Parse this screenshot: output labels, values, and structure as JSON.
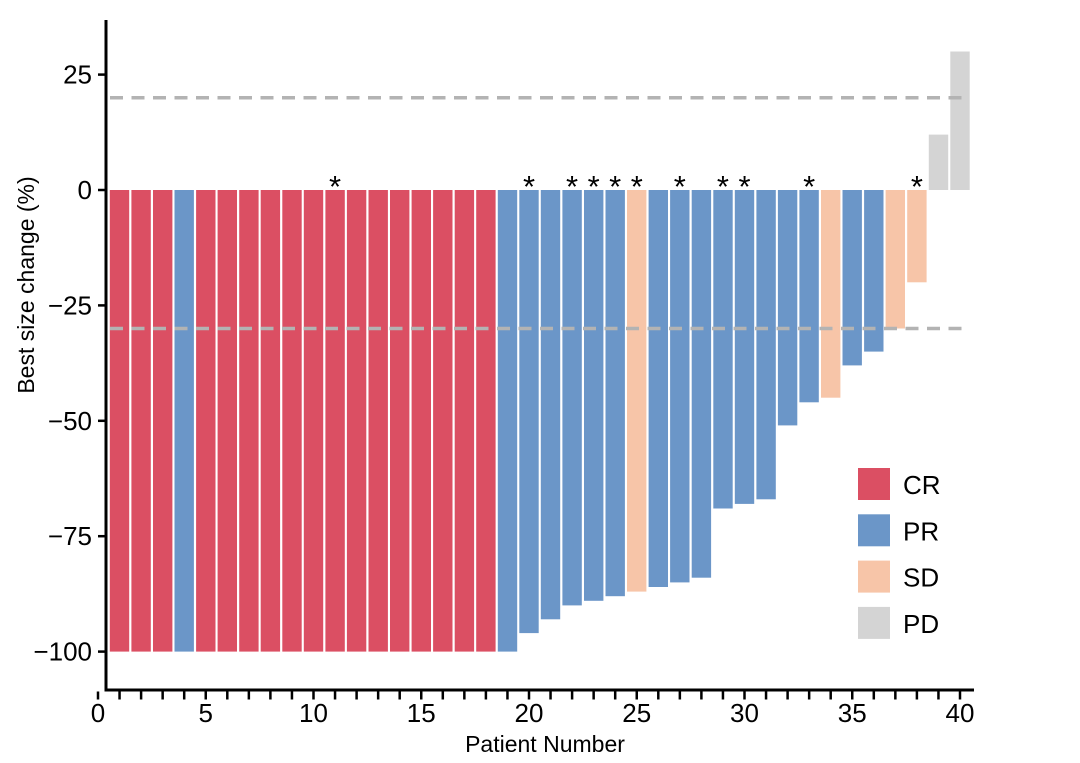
{
  "chart_data": {
    "type": "bar",
    "title": "",
    "xlabel": "Patient Number",
    "ylabel": "Best size change (%)",
    "x_range": [
      0,
      40
    ],
    "ylim": [
      -108,
      38
    ],
    "x_major_ticks": [
      {
        "v": 0,
        "label": "0"
      },
      {
        "v": 5,
        "label": "5"
      },
      {
        "v": 10,
        "label": "10"
      },
      {
        "v": 15,
        "label": "15"
      },
      {
        "v": 20,
        "label": "20"
      },
      {
        "v": 25,
        "label": "25"
      },
      {
        "v": 30,
        "label": "30"
      },
      {
        "v": 35,
        "label": "35"
      },
      {
        "v": 40,
        "label": "40"
      }
    ],
    "x_minor_tick_every": 1,
    "y_ticks": [
      {
        "v": 25,
        "label": "25"
      },
      {
        "v": 0,
        "label": "0"
      },
      {
        "v": -25,
        "label": "−25"
      },
      {
        "v": -50,
        "label": "−50"
      },
      {
        "v": -75,
        "label": "−75"
      },
      {
        "v": -100,
        "label": "−100"
      }
    ],
    "grid": false,
    "reference_lines": [
      {
        "value": 20,
        "style": "dashed"
      },
      {
        "value": -30,
        "style": "dashed"
      }
    ],
    "annotation_symbol": "*",
    "legend_position": "right-inside",
    "legend": [
      {
        "label": "CR",
        "color": "#DB4F63"
      },
      {
        "label": "PR",
        "color": "#6B96C8"
      },
      {
        "label": "SD",
        "color": "#F7C5A8"
      },
      {
        "label": "PD",
        "color": "#D4D4D4"
      }
    ],
    "bars": [
      {
        "patient": 1,
        "response": "CR",
        "value": -100,
        "asterisk": false
      },
      {
        "patient": 2,
        "response": "CR",
        "value": -100,
        "asterisk": false
      },
      {
        "patient": 3,
        "response": "CR",
        "value": -100,
        "asterisk": false
      },
      {
        "patient": 4,
        "response": "PR",
        "value": -100,
        "asterisk": false
      },
      {
        "patient": 5,
        "response": "CR",
        "value": -100,
        "asterisk": false
      },
      {
        "patient": 6,
        "response": "CR",
        "value": -100,
        "asterisk": false
      },
      {
        "patient": 7,
        "response": "CR",
        "value": -100,
        "asterisk": false
      },
      {
        "patient": 8,
        "response": "CR",
        "value": -100,
        "asterisk": false
      },
      {
        "patient": 9,
        "response": "CR",
        "value": -100,
        "asterisk": false
      },
      {
        "patient": 10,
        "response": "CR",
        "value": -100,
        "asterisk": false
      },
      {
        "patient": 11,
        "response": "CR",
        "value": -100,
        "asterisk": true
      },
      {
        "patient": 12,
        "response": "CR",
        "value": -100,
        "asterisk": false
      },
      {
        "patient": 13,
        "response": "CR",
        "value": -100,
        "asterisk": false
      },
      {
        "patient": 14,
        "response": "CR",
        "value": -100,
        "asterisk": false
      },
      {
        "patient": 15,
        "response": "CR",
        "value": -100,
        "asterisk": false
      },
      {
        "patient": 16,
        "response": "CR",
        "value": -100,
        "asterisk": false
      },
      {
        "patient": 17,
        "response": "CR",
        "value": -100,
        "asterisk": false
      },
      {
        "patient": 18,
        "response": "CR",
        "value": -100,
        "asterisk": false
      },
      {
        "patient": 19,
        "response": "PR",
        "value": -100,
        "asterisk": false
      },
      {
        "patient": 20,
        "response": "PR",
        "value": -96,
        "asterisk": true
      },
      {
        "patient": 21,
        "response": "PR",
        "value": -93,
        "asterisk": false
      },
      {
        "patient": 22,
        "response": "PR",
        "value": -90,
        "asterisk": true
      },
      {
        "patient": 23,
        "response": "PR",
        "value": -89,
        "asterisk": true
      },
      {
        "patient": 24,
        "response": "PR",
        "value": -88,
        "asterisk": true
      },
      {
        "patient": 25,
        "response": "SD",
        "value": -87,
        "asterisk": true
      },
      {
        "patient": 26,
        "response": "PR",
        "value": -86,
        "asterisk": false
      },
      {
        "patient": 27,
        "response": "PR",
        "value": -85,
        "asterisk": true
      },
      {
        "patient": 28,
        "response": "PR",
        "value": -84,
        "asterisk": false
      },
      {
        "patient": 29,
        "response": "PR",
        "value": -69,
        "asterisk": true
      },
      {
        "patient": 30,
        "response": "PR",
        "value": -68,
        "asterisk": true
      },
      {
        "patient": 31,
        "response": "PR",
        "value": -67,
        "asterisk": false
      },
      {
        "patient": 32,
        "response": "PR",
        "value": -51,
        "asterisk": false
      },
      {
        "patient": 33,
        "response": "PR",
        "value": -46,
        "asterisk": true
      },
      {
        "patient": 34,
        "response": "SD",
        "value": -45,
        "asterisk": false
      },
      {
        "patient": 35,
        "response": "PR",
        "value": -38,
        "asterisk": false
      },
      {
        "patient": 36,
        "response": "PR",
        "value": -35,
        "asterisk": false
      },
      {
        "patient": 37,
        "response": "SD",
        "value": -30,
        "asterisk": false
      },
      {
        "patient": 38,
        "response": "SD",
        "value": -20,
        "asterisk": true
      },
      {
        "patient": 39,
        "response": "PD",
        "value": 12,
        "asterisk": false
      },
      {
        "patient": 40,
        "response": "PD",
        "value": 30,
        "asterisk": false
      }
    ],
    "colors": {
      "CR": "#DB4F63",
      "PR": "#6B96C8",
      "SD": "#F7C5A8",
      "PD": "#D4D4D4",
      "axis": "#000000",
      "reference_line": "#B3B3B3",
      "background": "#FFFFFF"
    }
  }
}
